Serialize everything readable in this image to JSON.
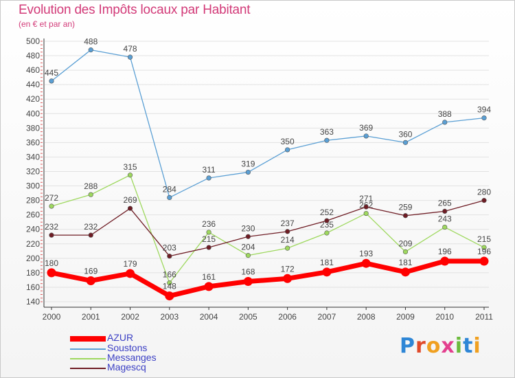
{
  "chart_data": {
    "type": "line",
    "title": "Evolution des Impôts locaux par Habitant",
    "subtitle": "(en € et par an)",
    "xlabel": "",
    "ylabel": "",
    "ylim": [
      140,
      500
    ],
    "ytick_step": 20,
    "x": [
      "2000",
      "2001",
      "2002",
      "2003",
      "2004",
      "2005",
      "2006",
      "2007",
      "2008",
      "2009",
      "2010",
      "2011"
    ],
    "series": [
      {
        "name": "Soustons",
        "color": "#5a9fd4",
        "values": [
          445,
          488,
          478,
          284,
          311,
          319,
          350,
          363,
          369,
          360,
          388,
          394
        ]
      },
      {
        "name": "Messanges",
        "color": "#9ed85e",
        "values": [
          272,
          288,
          315,
          166,
          236,
          204,
          214,
          235,
          262,
          209,
          243,
          215
        ]
      },
      {
        "name": "Magescq",
        "color": "#6e1c24",
        "values": [
          232,
          232,
          269,
          203,
          215,
          230,
          237,
          252,
          271,
          259,
          265,
          280
        ]
      },
      {
        "name": "AZUR",
        "color": "#ff0000",
        "values": [
          180,
          169,
          179,
          148,
          161,
          168,
          172,
          181,
          193,
          181,
          196,
          196
        ]
      }
    ],
    "legend": [
      "AZUR",
      "Soustons",
      "Messanges",
      "Magescq"
    ]
  },
  "logo": {
    "text": "Proxiti",
    "letters": [
      "P",
      "r",
      "o",
      "x",
      "i",
      "t",
      "i"
    ]
  }
}
